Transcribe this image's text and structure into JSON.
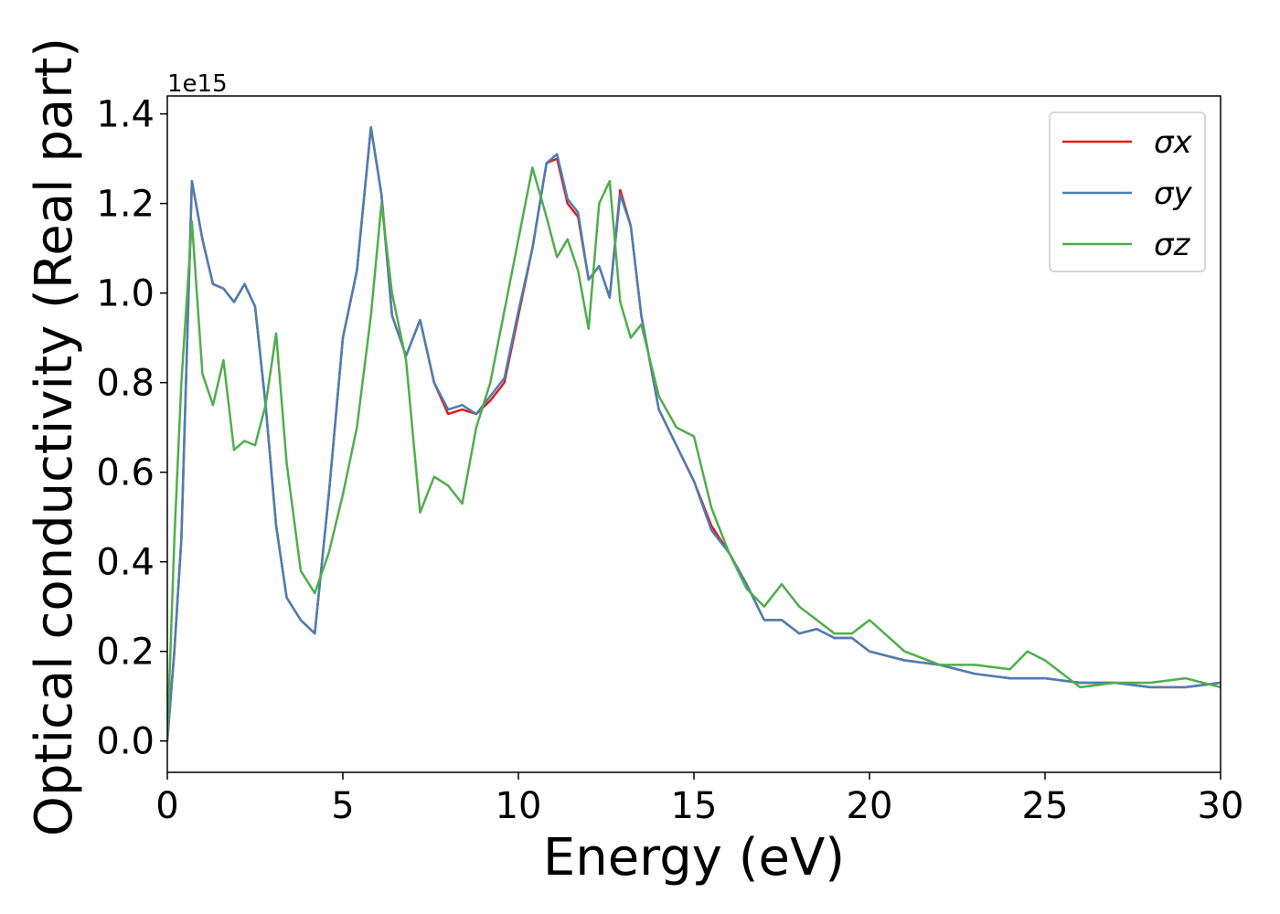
{
  "chart_data": {
    "type": "line",
    "xlabel": "Energy (eV)",
    "ylabel": "Optical conductivity (Real part)",
    "offset_label": "1e15",
    "xlim": [
      0,
      30
    ],
    "xticks": [
      0,
      5,
      10,
      15,
      20,
      25,
      30
    ],
    "ylim": [
      -0.07,
      1.44
    ],
    "yticks": [
      {
        "value": 0,
        "label": "0.0"
      },
      0.2,
      0.4,
      0.6,
      0.8,
      {
        "value": 1,
        "label": "1.0"
      },
      1.2,
      1.4
    ],
    "legend": "upper right",
    "x": [
      0,
      0.2,
      0.4,
      0.7,
      1.0,
      1.3,
      1.6,
      1.9,
      2.2,
      2.5,
      2.8,
      3.1,
      3.4,
      3.8,
      4.2,
      4.6,
      5.0,
      5.4,
      5.8,
      6.1,
      6.4,
      6.8,
      7.2,
      7.6,
      8.0,
      8.4,
      8.8,
      9.2,
      9.6,
      10.0,
      10.4,
      10.8,
      11.1,
      11.4,
      11.7,
      12.0,
      12.3,
      12.6,
      12.9,
      13.2,
      13.5,
      14.0,
      14.5,
      15.0,
      15.5,
      16.0,
      16.5,
      17.0,
      17.5,
      18.0,
      18.5,
      19.0,
      19.5,
      20.0,
      21,
      22,
      23,
      24,
      24.5,
      25,
      26,
      27,
      28,
      29,
      30
    ],
    "series": [
      {
        "name": "σx",
        "color": "#e41a1c",
        "values": [
          0.0,
          0.2,
          0.45,
          1.25,
          1.12,
          1.02,
          1.01,
          0.98,
          1.02,
          0.97,
          0.75,
          0.48,
          0.32,
          0.27,
          0.24,
          0.55,
          0.9,
          1.05,
          1.37,
          1.22,
          0.95,
          0.86,
          0.94,
          0.8,
          0.73,
          0.74,
          0.73,
          0.76,
          0.8,
          0.95,
          1.1,
          1.29,
          1.3,
          1.2,
          1.17,
          1.03,
          1.06,
          0.99,
          1.23,
          1.15,
          0.95,
          0.74,
          0.66,
          0.58,
          0.48,
          0.42,
          0.35,
          0.27,
          0.27,
          0.24,
          0.25,
          0.23,
          0.23,
          0.2,
          0.18,
          0.17,
          0.15,
          0.14,
          0.14,
          0.14,
          0.13,
          0.13,
          0.12,
          0.12,
          0.13
        ]
      },
      {
        "name": "σy",
        "color": "#4a7fb5",
        "values": [
          0.0,
          0.2,
          0.45,
          1.25,
          1.12,
          1.02,
          1.01,
          0.98,
          1.02,
          0.97,
          0.75,
          0.48,
          0.32,
          0.27,
          0.24,
          0.55,
          0.9,
          1.05,
          1.37,
          1.22,
          0.95,
          0.86,
          0.94,
          0.8,
          0.74,
          0.75,
          0.73,
          0.77,
          0.81,
          0.96,
          1.1,
          1.29,
          1.31,
          1.21,
          1.18,
          1.03,
          1.06,
          0.99,
          1.22,
          1.15,
          0.95,
          0.74,
          0.66,
          0.58,
          0.47,
          0.42,
          0.35,
          0.27,
          0.27,
          0.24,
          0.25,
          0.23,
          0.23,
          0.2,
          0.18,
          0.17,
          0.15,
          0.14,
          0.14,
          0.14,
          0.13,
          0.13,
          0.12,
          0.12,
          0.13
        ]
      },
      {
        "name": "σz",
        "color": "#4daf4a",
        "values": [
          0.0,
          0.45,
          0.8,
          1.16,
          0.82,
          0.75,
          0.85,
          0.65,
          0.67,
          0.66,
          0.75,
          0.91,
          0.62,
          0.38,
          0.33,
          0.42,
          0.55,
          0.7,
          0.95,
          1.2,
          1.0,
          0.85,
          0.51,
          0.59,
          0.57,
          0.53,
          0.7,
          0.8,
          0.96,
          1.12,
          1.28,
          1.17,
          1.08,
          1.12,
          1.05,
          0.92,
          1.2,
          1.25,
          0.98,
          0.9,
          0.93,
          0.77,
          0.7,
          0.68,
          0.52,
          0.42,
          0.34,
          0.3,
          0.35,
          0.3,
          0.27,
          0.24,
          0.24,
          0.27,
          0.2,
          0.17,
          0.17,
          0.16,
          0.2,
          0.18,
          0.12,
          0.13,
          0.13,
          0.14,
          0.12
        ]
      }
    ]
  }
}
